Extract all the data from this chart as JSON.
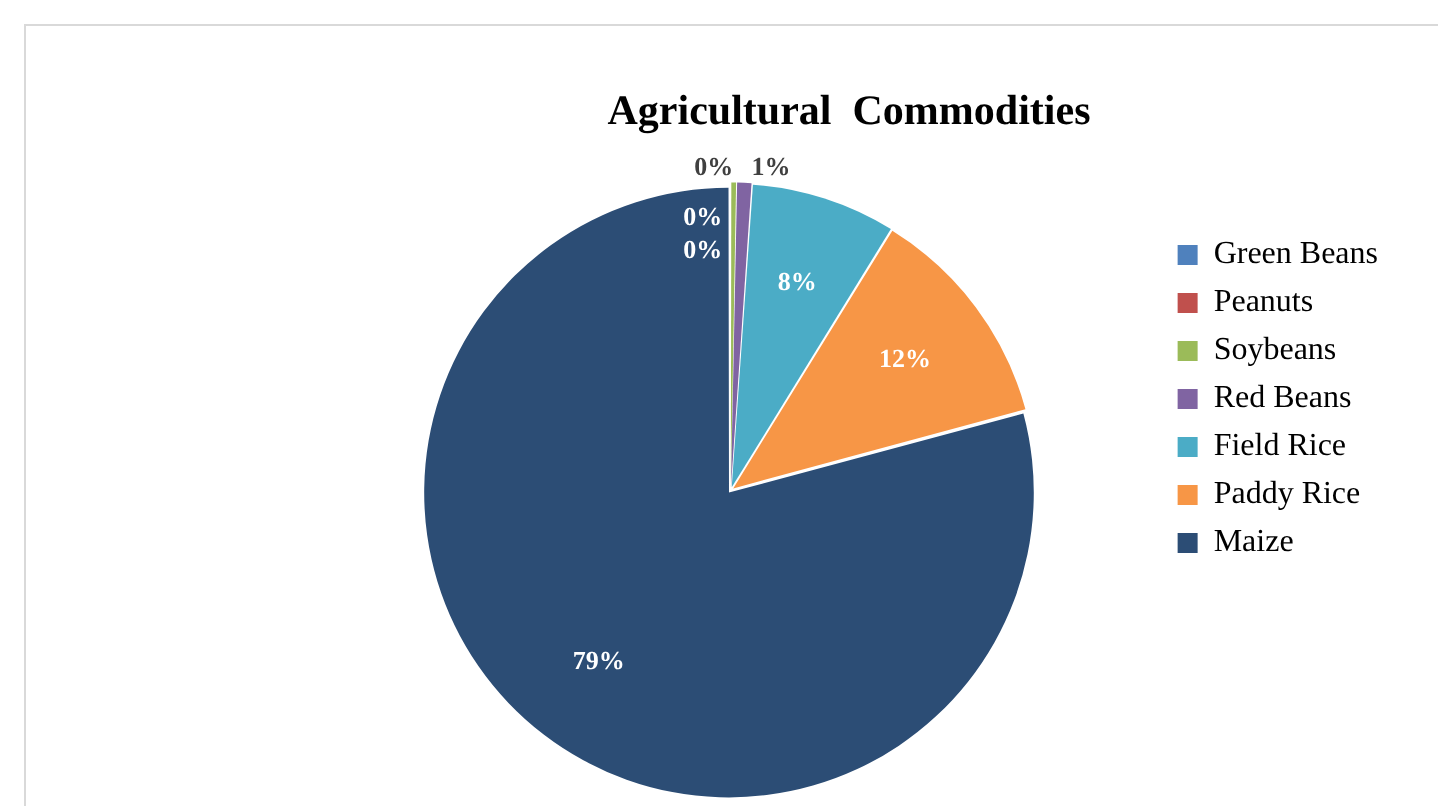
{
  "chart_data": {
    "type": "pie",
    "title": "Agricultural  Commodities",
    "categories": [
      "Green Beans",
      "Peanuts",
      "Soybeans",
      "Red Beans",
      "Field Rice",
      "Paddy Rice",
      "Maize"
    ],
    "values": [
      0,
      0,
      0.3,
      0.8,
      7.7,
      12.0,
      79.2
    ],
    "value_labels": [
      "0%",
      "0%",
      "0%",
      "1%",
      "8%",
      "12%",
      "79%"
    ],
    "colors": [
      "#4f81bd",
      "#c0504d",
      "#9bbb59",
      "#8064a2",
      "#4bacc6",
      "#f79646",
      "#2c4d75"
    ],
    "legend": "right"
  }
}
